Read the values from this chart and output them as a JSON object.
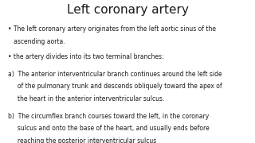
{
  "title": "Left coronary artery",
  "title_fontsize": 11,
  "title_fontweight": "normal",
  "title_color": "#1a1a1a",
  "background_color": "#ffffff",
  "text_color": "#1a1a1a",
  "font_family": "DejaVu Sans",
  "body_fontsize": 5.5,
  "bullet1_line1": "• The left coronary artery originates from the left aortic sinus of the",
  "bullet1_line2": "   ascending aorta.",
  "bullet2": "• the artery divides into its two terminal branches:",
  "item_a_line1": "a)  The anterior interventricular branch continues around the left side",
  "item_a_line2": "     of the pulmonary trunk and descends obliquely toward the apex of",
  "item_a_line3": "     the heart in the anterior interventricular sulcus.",
  "item_b_line1": "b)  The circumflex branch courses toward the left, in the coronary",
  "item_b_line2": "     sulcus and onto the base of the heart, and usually ends before",
  "item_b_line3": "     reaching the posterior interventricular sulcus"
}
